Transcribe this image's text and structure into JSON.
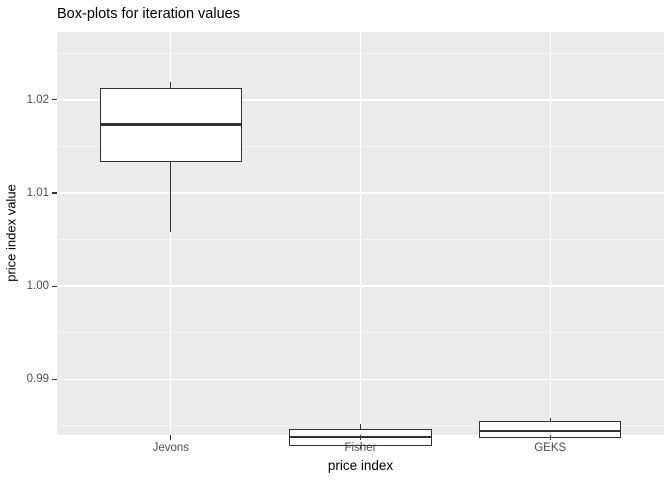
{
  "title": "Box-plots for iteration values",
  "chart_data": {
    "type": "boxplot",
    "title": "Box-plots for iteration values",
    "xlabel": "price index",
    "ylabel": "price index value",
    "categories": [
      "Jevons",
      "Fisher",
      "GEKS"
    ],
    "ylim": [
      0.984,
      1.0273
    ],
    "y_major_ticks": [
      0.99,
      1.0,
      1.01,
      1.02
    ],
    "y_tick_labels": [
      "0.99",
      "1.00",
      "1.01",
      "1.02"
    ],
    "y_minor_ticks": [
      0.985,
      0.995,
      1.005,
      1.015,
      1.025
    ],
    "grid": true,
    "legend": false,
    "series": [
      {
        "name": "Jevons",
        "whisker_low": 1.0092,
        "q1": 1.0168,
        "median": 1.0208,
        "q3": 1.0247,
        "whisker_high": 1.0254
      },
      {
        "name": "Fisher",
        "whisker_low": 0.9859,
        "q1": 0.9863,
        "median": 0.9872,
        "q3": 0.9881,
        "whisker_high": 0.9886
      },
      {
        "name": "GEKS",
        "whisker_low": 0.987,
        "q1": 0.9871,
        "median": 0.9879,
        "q3": 0.9889,
        "whisker_high": 0.9893
      }
    ],
    "colors": {
      "panel_bg": "#EBEBEB",
      "gridline_major": "#FFFFFF",
      "gridline_minor": "#FFFFFF",
      "box_border": "#333333",
      "box_fill": "#FFFFFF",
      "axis_text": "#4D4D4D",
      "tick_mark": "#333333",
      "title_text": "#000000"
    }
  }
}
